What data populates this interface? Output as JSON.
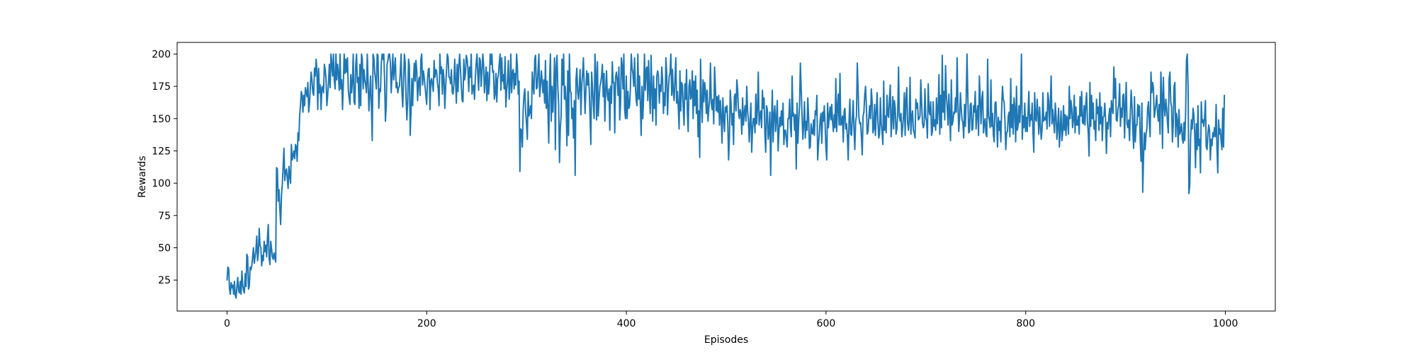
{
  "chart_data": {
    "type": "line",
    "title": "",
    "xlabel": "Episodes",
    "ylabel": "Rewards",
    "xlim": [
      -50,
      1050
    ],
    "ylim": [
      1,
      209
    ],
    "xticks": [
      0,
      200,
      400,
      600,
      800,
      1000
    ],
    "yticks": [
      25,
      50,
      75,
      100,
      125,
      150,
      175,
      200
    ],
    "grid": false,
    "series_color": "#1f77b4",
    "series": [
      {
        "values": [
          25,
          35,
          34,
          18,
          14,
          23,
          19,
          21,
          14,
          24,
          13,
          11,
          20,
          27,
          17,
          15,
          24,
          14,
          32,
          21,
          17,
          15,
          30,
          20,
          45,
          43,
          18,
          20,
          35,
          33,
          36,
          43,
          50,
          38,
          43,
          48,
          59,
          40,
          46,
          65,
          52,
          50,
          36,
          44,
          40,
          55,
          47,
          52,
          43,
          58,
          68,
          42,
          37,
          55,
          49,
          43,
          41,
          46,
          42,
          39,
          112,
          111,
          86,
          95,
          80,
          68,
          91,
          99,
          113,
          127,
          102,
          109,
          111,
          104,
          96,
          113,
          106,
          100,
          130,
          118,
          121,
          125,
          119,
          130,
          128,
          117,
          139,
          133,
          152,
          160,
          171,
          168,
          155,
          168,
          160,
          174,
          170,
          167,
          178,
          155,
          162,
          175,
          186,
          179,
          170,
          168,
          189,
          183,
          196,
          186,
          157,
          189,
          170,
          176,
          157,
          174,
          175,
          170,
          192,
          188,
          181,
          160,
          168,
          178,
          192,
          174,
          200,
          192,
          183,
          200,
          180,
          173,
          200,
          180,
          192,
          185,
          172,
          200,
          173,
          180,
          157,
          178,
          200,
          185,
          196,
          186,
          197,
          172,
          166,
          161,
          184,
          170,
          179,
          200,
          163,
          161,
          191,
          200,
          178,
          182,
          158,
          192,
          160,
          200,
          196,
          173,
          188,
          180,
          176,
          170,
          200,
          178,
          156,
          169,
          183,
          160,
          133,
          200,
          197,
          186,
          180,
          173,
          200,
          199,
          158,
          173,
          171,
          193,
          200,
          196,
          200,
          180,
          148,
          160,
          192,
          195,
          200,
          200,
          193,
          170,
          184,
          200,
          180,
          189,
          197,
          174,
          178,
          170,
          174,
          175,
          186,
          200,
          171,
          159,
          179,
          200,
          193,
          166,
          149,
          163,
          196,
          191,
          137,
          155,
          181,
          160,
          180,
          193,
          179,
          195,
          187,
          164,
          178,
          182,
          168,
          196,
          200,
          176,
          187,
          182,
          175,
          168,
          161,
          180,
          188,
          189,
          157,
          179,
          181,
          176,
          171,
          195,
          182,
          188,
          187,
          178,
          173,
          160,
          200,
          185,
          190,
          169,
          188,
          181,
          158,
          174,
          187,
          200,
          197,
          182,
          182,
          177,
          188,
          170,
          169,
          177,
          196,
          180,
          162,
          192,
          171,
          191,
          200,
          188,
          175,
          164,
          163,
          196,
          180,
          185,
          199,
          196,
          189,
          171,
          190,
          182,
          200,
          169,
          174,
          176,
          165,
          182,
          193,
          200,
          184,
          172,
          197,
          195,
          175,
          186,
          200,
          192,
          170,
          180,
          190,
          164,
          186,
          169,
          177,
          200,
          192,
          200,
          186,
          187,
          165,
          169,
          185,
          163,
          181,
          184,
          193,
          200,
          172,
          197,
          179,
          184,
          173,
          198,
          159,
          172,
          180,
          195,
          165,
          175,
          200,
          170,
          186,
          188,
          173,
          185,
          176,
          200,
          190,
          169,
          179,
          109,
          142,
          141,
          128,
          157,
          168,
          173,
          155,
          146,
          134,
          171,
          152,
          155,
          160,
          150,
          186,
          175,
          169,
          196,
          199,
          173,
          174,
          187,
          200,
          167,
          175,
          187,
          179,
          170,
          180,
          162,
          195,
          158,
          179,
          156,
          131,
          180,
          200,
          148,
          175,
          155,
          173,
          197,
          126,
          190,
          199,
          174,
          161,
          116,
          143,
          152,
          196,
          176,
          200,
          165,
          175,
          163,
          129,
          187,
          137,
          200,
          172,
          170,
          150,
          158,
          135,
          164,
          106,
          180,
          189,
          171,
          165,
          175,
          188,
          153,
          176,
          185,
          197,
          174,
          154,
          172,
          187,
          176,
          185,
          173,
          152,
          130,
          186,
          174,
          161,
          150,
          200,
          185,
          149,
          194,
          152,
          165,
          175,
          178,
          183,
          192,
          167,
          185,
          148,
          172,
          187,
          168,
          164,
          173,
          141,
          175,
          162,
          194,
          178,
          178,
          139,
          182,
          186,
          180,
          168,
          190,
          149,
          161,
          197,
          191,
          173,
          200,
          157,
          150,
          183,
          150,
          171,
          158,
          160,
          174,
          200,
          189,
          185,
          175,
          197,
          175,
          164,
          160,
          200,
          165,
          183,
          161,
          137,
          175,
          150,
          168,
          200,
          172,
          188,
          190,
          164,
          195,
          171,
          154,
          199,
          172,
          148,
          183,
          158,
          173,
          145,
          183,
          187,
          183,
          162,
          176,
          171,
          190,
          180,
          154,
          170,
          160,
          197,
          184,
          153,
          172,
          183,
          185,
          200,
          168,
          188,
          170,
          164,
          180,
          197,
          162,
          171,
          159,
          142,
          187,
          156,
          178,
          176,
          158,
          145,
          177,
          165,
          188,
          155,
          140,
          175,
          180,
          165,
          167,
          187,
          150,
          179,
          160,
          183,
          154,
          172,
          136,
          156,
          120,
          196,
          164,
          147,
          180,
          163,
          178,
          171,
          154,
          172,
          148,
          158,
          165,
          193,
          162,
          157,
          165,
          146,
          190,
          174,
          156,
          167,
          155,
          168,
          145,
          164,
          152,
          131,
          166,
          151,
          140,
          159,
          155,
          160,
          147,
          118,
          135,
          172,
          161,
          145,
          154,
          130,
          167,
          169,
          156,
          180,
          172,
          155,
          150,
          157,
          153,
          138,
          166,
          145,
          154,
          160,
          148,
          175,
          157,
          149,
          132,
          147,
          162,
          124,
          142,
          150,
          150,
          139,
          169,
          146,
          158,
          186,
          145,
          153,
          156,
          143,
          172,
          158,
          166,
          138,
          124,
          160,
          157,
          134,
          140,
          155,
          106,
          146,
          172,
          132,
          153,
          160,
          140,
          150,
          164,
          125,
          139,
          151,
          144,
          156,
          145,
          162,
          130,
          141,
          141,
          134,
          128,
          150,
          150,
          165,
          143,
          136,
          183,
          152,
          154,
          141,
          153,
          111,
          162,
          131,
          148,
          160,
          193,
          173,
          153,
          134,
          145,
          163,
          135,
          148,
          141,
          166,
          151,
          127,
          128,
          146,
          139,
          138,
          149,
          137,
          156,
          153,
          168,
          118,
          130,
          138,
          149,
          154,
          131,
          155,
          148,
          160,
          145,
          127,
          118,
          162,
          143,
          152,
          159,
          149,
          161,
          148,
          140,
          153,
          143,
          181,
          140,
          159,
          169,
          145,
          185,
          145,
          146,
          152,
          132,
          156,
          158,
          142,
          146,
          136,
          118,
          148,
          165,
          138,
          137,
          151,
          164,
          142,
          126,
          148,
          152,
          193,
          172,
          151,
          146,
          147,
          136,
          122,
          152,
          155,
          168,
          175,
          160,
          138,
          140,
          151,
          160,
          150,
          173,
          163,
          139,
          142,
          161,
          137,
          155,
          170,
          148,
          135,
          138,
          166,
          146,
          140,
          130,
          179,
          141,
          152,
          139,
          168,
          153,
          151,
          166,
          176,
          136,
          150,
          167,
          142,
          164,
          158,
          138,
          142,
          154,
          190,
          152,
          148,
          154,
          136,
          143,
          152,
          170,
          137,
          165,
          174,
          147,
          141,
          149,
          182,
          138,
          152,
          156,
          141,
          139,
          135,
          165,
          158,
          162,
          149,
          150,
          152,
          180,
          162,
          147,
          143,
          145,
          173,
          151,
          148,
          135,
          177,
          156,
          153,
          163,
          137,
          140,
          163,
          144,
          149,
          141,
          166,
          146,
          157,
          184,
          138,
          168,
          143,
          199,
          155,
          171,
          149,
          191,
          168,
          159,
          145,
          169,
          152,
          133,
          180,
          145,
          148,
          155,
          154,
          166,
          155,
          197,
          162,
          140,
          150,
          170,
          158,
          149,
          147,
          135,
          161,
          144,
          165,
          200,
          168,
          139,
          140,
          161,
          162,
          141,
          142,
          160,
          155,
          171,
          142,
          154,
          160,
          137,
          183,
          166,
          146,
          165,
          171,
          139,
          147,
          150,
          138,
          136,
          196,
          152,
          149,
          143,
          180,
          144,
          154,
          137,
          132,
          162,
          163,
          147,
          128,
          151,
          141,
          148,
          132,
          157,
          175,
          165,
          163,
          148,
          126,
          139,
          140,
          152,
          155,
          136,
          181,
          143,
          161,
          138,
          166,
          158,
          132,
          175,
          141,
          145,
          160,
          147,
          162,
          200,
          134,
          152,
          143,
          162,
          140,
          151,
          140,
          155,
          171,
          144,
          153,
          149,
          162,
          139,
          124,
          170,
          150,
          148,
          165,
          154,
          138,
          159,
          145,
          134,
          142,
          170,
          148,
          151,
          149,
          155,
          142,
          170,
          164,
          144,
          161,
          183,
          146,
          157,
          148,
          139,
          162,
          151,
          134,
          145,
          158,
          128,
          143,
          156,
          133,
          139,
          160,
          141,
          153,
          137,
          152,
          149,
          138,
          175,
          150,
          164,
          158,
          143,
          149,
          168,
          139,
          159,
          145,
          145,
          152,
          138,
          167,
          152,
          171,
          147,
          146,
          160,
          145,
          162,
          170,
          148,
          139,
          121,
          178,
          144,
          168,
          150,
          162,
          142,
          148,
          133,
          165,
          154,
          159,
          141,
          170,
          146,
          159,
          133,
          151,
          152,
          162,
          149,
          123,
          147,
          142,
          152,
          158,
          136,
          164,
          158,
          154,
          190,
          166,
          181,
          149,
          148,
          157,
          161,
          177,
          144,
          158,
          151,
          168,
          169,
          135,
          160,
          178,
          146,
          143,
          149,
          133,
          155,
          172,
          160,
          141,
          127,
          167,
          132,
          145,
          145,
          161,
          152,
          160,
          133,
          117,
          162,
          93,
          120,
          139,
          126,
          138,
          142,
          158,
          163,
          147,
          136,
          186,
          170,
          178,
          174,
          151,
          156,
          161,
          168,
          154,
          148,
          161,
          138,
          186,
          169,
          127,
          182,
          160,
          152,
          165,
          158,
          147,
          139,
          181,
          186,
          163,
          159,
          132,
          145,
          175,
          178,
          136,
          154,
          149,
          128,
          157,
          138,
          141,
          146,
          134,
          131,
          147,
          133,
          154,
          195,
          200,
          175,
          92,
          98,
          134,
          149,
          142,
          158,
          153,
          139,
          112,
          146,
          126,
          160,
          129,
          134,
          108,
          163,
          147,
          149,
          144,
          151,
          164,
          128,
          126,
          138,
          145,
          141,
          118,
          134,
          129,
          139,
          136,
          143,
          136,
          161,
          127,
          108,
          149,
          138,
          142,
          133,
          126,
          158,
          128,
          168
        ]
      }
    ]
  }
}
